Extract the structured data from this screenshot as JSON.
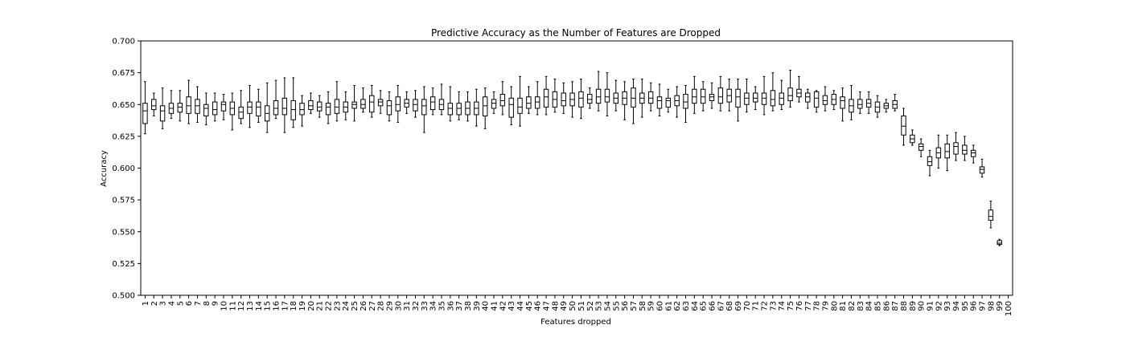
{
  "chart_data": {
    "type": "box",
    "title": "Predictive Accuracy as the Number of Features are Dropped",
    "xlabel": "Features dropped",
    "ylabel": "Accuracy",
    "ylim": [
      0.5,
      0.7
    ],
    "yticks": [
      "0.500",
      "0.525",
      "0.550",
      "0.575",
      "0.600",
      "0.625",
      "0.650",
      "0.675",
      "0.700"
    ],
    "grid": false,
    "categories": [
      "1",
      "2",
      "3",
      "4",
      "5",
      "6",
      "7",
      "8",
      "9",
      "10",
      "11",
      "12",
      "13",
      "14",
      "15",
      "16",
      "17",
      "18",
      "19",
      "20",
      "21",
      "22",
      "23",
      "24",
      "25",
      "26",
      "27",
      "28",
      "29",
      "30",
      "31",
      "32",
      "33",
      "34",
      "35",
      "36",
      "37",
      "38",
      "39",
      "40",
      "41",
      "42",
      "43",
      "44",
      "45",
      "46",
      "47",
      "48",
      "49",
      "50",
      "51",
      "52",
      "53",
      "54",
      "55",
      "56",
      "57",
      "58",
      "59",
      "60",
      "61",
      "62",
      "63",
      "64",
      "65",
      "66",
      "67",
      "68",
      "69",
      "70",
      "71",
      "72",
      "73",
      "74",
      "75",
      "76",
      "77",
      "78",
      "79",
      "80",
      "81",
      "82",
      "83",
      "84",
      "85",
      "86",
      "87",
      "88",
      "89",
      "90",
      "91",
      "92",
      "93",
      "94",
      "95",
      "96",
      "97",
      "98",
      "99",
      "100"
    ],
    "boxes": [
      {
        "x": "1",
        "whislo": 0.627,
        "q1": 0.635,
        "med": 0.645,
        "q3": 0.651,
        "whishi": 0.668
      },
      {
        "x": "2",
        "whislo": 0.641,
        "q1": 0.646,
        "med": 0.649,
        "q3": 0.654,
        "whishi": 0.659
      },
      {
        "x": "3",
        "whislo": 0.631,
        "q1": 0.637,
        "med": 0.645,
        "q3": 0.649,
        "whishi": 0.663
      },
      {
        "x": "4",
        "whislo": 0.639,
        "q1": 0.643,
        "med": 0.647,
        "q3": 0.651,
        "whishi": 0.661
      },
      {
        "x": "5",
        "whislo": 0.637,
        "q1": 0.644,
        "med": 0.648,
        "q3": 0.651,
        "whishi": 0.661
      },
      {
        "x": "6",
        "whislo": 0.635,
        "q1": 0.643,
        "med": 0.649,
        "q3": 0.656,
        "whishi": 0.669
      },
      {
        "x": "7",
        "whislo": 0.636,
        "q1": 0.643,
        "med": 0.649,
        "q3": 0.654,
        "whishi": 0.664
      },
      {
        "x": "8",
        "whislo": 0.634,
        "q1": 0.641,
        "med": 0.647,
        "q3": 0.65,
        "whishi": 0.659
      },
      {
        "x": "9",
        "whislo": 0.637,
        "q1": 0.642,
        "med": 0.646,
        "q3": 0.652,
        "whishi": 0.659
      },
      {
        "x": "10",
        "whislo": 0.638,
        "q1": 0.645,
        "med": 0.65,
        "q3": 0.652,
        "whishi": 0.658
      },
      {
        "x": "11",
        "whislo": 0.63,
        "q1": 0.642,
        "med": 0.647,
        "q3": 0.652,
        "whishi": 0.659
      },
      {
        "x": "12",
        "whislo": 0.635,
        "q1": 0.639,
        "med": 0.644,
        "q3": 0.648,
        "whishi": 0.661
      },
      {
        "x": "13",
        "whislo": 0.632,
        "q1": 0.643,
        "med": 0.648,
        "q3": 0.652,
        "whishi": 0.665
      },
      {
        "x": "14",
        "whislo": 0.636,
        "q1": 0.641,
        "med": 0.648,
        "q3": 0.652,
        "whishi": 0.662
      },
      {
        "x": "15",
        "whislo": 0.628,
        "q1": 0.637,
        "med": 0.643,
        "q3": 0.649,
        "whishi": 0.667
      },
      {
        "x": "16",
        "whislo": 0.639,
        "q1": 0.642,
        "med": 0.647,
        "q3": 0.653,
        "whishi": 0.669
      },
      {
        "x": "17",
        "whislo": 0.628,
        "q1": 0.642,
        "med": 0.647,
        "q3": 0.655,
        "whishi": 0.671
      },
      {
        "x": "18",
        "whislo": 0.632,
        "q1": 0.638,
        "med": 0.646,
        "q3": 0.653,
        "whishi": 0.671
      },
      {
        "x": "19",
        "whislo": 0.633,
        "q1": 0.642,
        "med": 0.646,
        "q3": 0.651,
        "whishi": 0.657
      },
      {
        "x": "20",
        "whislo": 0.643,
        "q1": 0.646,
        "med": 0.649,
        "q3": 0.653,
        "whishi": 0.659
      },
      {
        "x": "21",
        "whislo": 0.64,
        "q1": 0.645,
        "med": 0.648,
        "q3": 0.652,
        "whishi": 0.657
      },
      {
        "x": "22",
        "whislo": 0.635,
        "q1": 0.642,
        "med": 0.648,
        "q3": 0.651,
        "whishi": 0.66
      },
      {
        "x": "23",
        "whislo": 0.637,
        "q1": 0.643,
        "med": 0.648,
        "q3": 0.654,
        "whishi": 0.668
      },
      {
        "x": "24",
        "whislo": 0.638,
        "q1": 0.644,
        "med": 0.648,
        "q3": 0.652,
        "whishi": 0.66
      },
      {
        "x": "25",
        "whislo": 0.637,
        "q1": 0.647,
        "med": 0.65,
        "q3": 0.652,
        "whishi": 0.665
      },
      {
        "x": "26",
        "whislo": 0.644,
        "q1": 0.647,
        "med": 0.65,
        "q3": 0.654,
        "whishi": 0.663
      },
      {
        "x": "27",
        "whislo": 0.64,
        "q1": 0.644,
        "med": 0.652,
        "q3": 0.657,
        "whishi": 0.665
      },
      {
        "x": "28",
        "whislo": 0.643,
        "q1": 0.649,
        "med": 0.652,
        "q3": 0.654,
        "whishi": 0.661
      },
      {
        "x": "29",
        "whislo": 0.637,
        "q1": 0.642,
        "med": 0.649,
        "q3": 0.653,
        "whishi": 0.66
      },
      {
        "x": "30",
        "whislo": 0.636,
        "q1": 0.645,
        "med": 0.65,
        "q3": 0.656,
        "whishi": 0.665
      },
      {
        "x": "31",
        "whislo": 0.643,
        "q1": 0.648,
        "med": 0.651,
        "q3": 0.654,
        "whishi": 0.66
      },
      {
        "x": "32",
        "whislo": 0.64,
        "q1": 0.645,
        "med": 0.65,
        "q3": 0.654,
        "whishi": 0.661
      },
      {
        "x": "33",
        "whislo": 0.628,
        "q1": 0.642,
        "med": 0.649,
        "q3": 0.654,
        "whishi": 0.664
      },
      {
        "x": "34",
        "whislo": 0.642,
        "q1": 0.646,
        "med": 0.652,
        "q3": 0.656,
        "whishi": 0.663
      },
      {
        "x": "35",
        "whislo": 0.642,
        "q1": 0.646,
        "med": 0.65,
        "q3": 0.654,
        "whishi": 0.666
      },
      {
        "x": "36",
        "whislo": 0.637,
        "q1": 0.642,
        "med": 0.647,
        "q3": 0.651,
        "whishi": 0.664
      },
      {
        "x": "37",
        "whislo": 0.638,
        "q1": 0.642,
        "med": 0.647,
        "q3": 0.651,
        "whishi": 0.66
      },
      {
        "x": "38",
        "whislo": 0.637,
        "q1": 0.642,
        "med": 0.647,
        "q3": 0.652,
        "whishi": 0.66
      },
      {
        "x": "39",
        "whislo": 0.633,
        "q1": 0.642,
        "med": 0.647,
        "q3": 0.652,
        "whishi": 0.662
      },
      {
        "x": "40",
        "whislo": 0.631,
        "q1": 0.641,
        "med": 0.649,
        "q3": 0.656,
        "whishi": 0.663
      },
      {
        "x": "41",
        "whislo": 0.643,
        "q1": 0.647,
        "med": 0.651,
        "q3": 0.654,
        "whishi": 0.66
      },
      {
        "x": "42",
        "whislo": 0.642,
        "q1": 0.649,
        "med": 0.653,
        "q3": 0.658,
        "whishi": 0.668
      },
      {
        "x": "43",
        "whislo": 0.634,
        "q1": 0.64,
        "med": 0.65,
        "q3": 0.655,
        "whishi": 0.664
      },
      {
        "x": "44",
        "whislo": 0.633,
        "q1": 0.643,
        "med": 0.648,
        "q3": 0.655,
        "whishi": 0.672
      },
      {
        "x": "45",
        "whislo": 0.643,
        "q1": 0.647,
        "med": 0.651,
        "q3": 0.656,
        "whishi": 0.664
      },
      {
        "x": "46",
        "whislo": 0.642,
        "q1": 0.647,
        "med": 0.652,
        "q3": 0.656,
        "whishi": 0.668
      },
      {
        "x": "47",
        "whislo": 0.642,
        "q1": 0.648,
        "med": 0.656,
        "q3": 0.662,
        "whishi": 0.672
      },
      {
        "x": "48",
        "whislo": 0.644,
        "q1": 0.648,
        "med": 0.654,
        "q3": 0.66,
        "whishi": 0.67
      },
      {
        "x": "49",
        "whislo": 0.643,
        "q1": 0.649,
        "med": 0.653,
        "q3": 0.659,
        "whishi": 0.667
      },
      {
        "x": "50",
        "whislo": 0.64,
        "q1": 0.649,
        "med": 0.654,
        "q3": 0.659,
        "whishi": 0.668
      },
      {
        "x": "51",
        "whislo": 0.639,
        "q1": 0.648,
        "med": 0.655,
        "q3": 0.66,
        "whishi": 0.67
      },
      {
        "x": "52",
        "whislo": 0.647,
        "q1": 0.651,
        "med": 0.654,
        "q3": 0.658,
        "whishi": 0.663
      },
      {
        "x": "53",
        "whislo": 0.645,
        "q1": 0.651,
        "med": 0.656,
        "q3": 0.662,
        "whishi": 0.676
      },
      {
        "x": "54",
        "whislo": 0.641,
        "q1": 0.652,
        "med": 0.656,
        "q3": 0.662,
        "whishi": 0.675
      },
      {
        "x": "55",
        "whislo": 0.645,
        "q1": 0.651,
        "med": 0.655,
        "q3": 0.659,
        "whishi": 0.669
      },
      {
        "x": "56",
        "whislo": 0.638,
        "q1": 0.65,
        "med": 0.655,
        "q3": 0.66,
        "whishi": 0.668
      },
      {
        "x": "57",
        "whislo": 0.635,
        "q1": 0.648,
        "med": 0.655,
        "q3": 0.663,
        "whishi": 0.67
      },
      {
        "x": "58",
        "whislo": 0.64,
        "q1": 0.651,
        "med": 0.655,
        "q3": 0.659,
        "whishi": 0.67
      },
      {
        "x": "59",
        "whislo": 0.645,
        "q1": 0.651,
        "med": 0.655,
        "q3": 0.66,
        "whishi": 0.667
      },
      {
        "x": "60",
        "whislo": 0.641,
        "q1": 0.647,
        "med": 0.653,
        "q3": 0.656,
        "whishi": 0.666
      },
      {
        "x": "61",
        "whislo": 0.644,
        "q1": 0.648,
        "med": 0.653,
        "q3": 0.655,
        "whishi": 0.662
      },
      {
        "x": "62",
        "whislo": 0.64,
        "q1": 0.649,
        "med": 0.653,
        "q3": 0.657,
        "whishi": 0.664
      },
      {
        "x": "63",
        "whislo": 0.636,
        "q1": 0.647,
        "med": 0.652,
        "q3": 0.658,
        "whishi": 0.665
      },
      {
        "x": "64",
        "whislo": 0.643,
        "q1": 0.651,
        "med": 0.656,
        "q3": 0.662,
        "whishi": 0.672
      },
      {
        "x": "65",
        "whislo": 0.645,
        "q1": 0.651,
        "med": 0.656,
        "q3": 0.662,
        "whishi": 0.668
      },
      {
        "x": "66",
        "whislo": 0.647,
        "q1": 0.653,
        "med": 0.656,
        "q3": 0.658,
        "whishi": 0.667
      },
      {
        "x": "67",
        "whislo": 0.645,
        "q1": 0.651,
        "med": 0.656,
        "q3": 0.663,
        "whishi": 0.672
      },
      {
        "x": "68",
        "whislo": 0.645,
        "q1": 0.652,
        "med": 0.657,
        "q3": 0.662,
        "whishi": 0.67
      },
      {
        "x": "69",
        "whislo": 0.637,
        "q1": 0.648,
        "med": 0.656,
        "q3": 0.662,
        "whishi": 0.67
      },
      {
        "x": "70",
        "whislo": 0.644,
        "q1": 0.65,
        "med": 0.655,
        "q3": 0.659,
        "whishi": 0.67
      },
      {
        "x": "71",
        "whislo": 0.646,
        "q1": 0.652,
        "med": 0.655,
        "q3": 0.659,
        "whishi": 0.664
      },
      {
        "x": "72",
        "whislo": 0.642,
        "q1": 0.65,
        "med": 0.655,
        "q3": 0.659,
        "whishi": 0.672
      },
      {
        "x": "73",
        "whislo": 0.645,
        "q1": 0.649,
        "med": 0.654,
        "q3": 0.661,
        "whishi": 0.675
      },
      {
        "x": "74",
        "whislo": 0.646,
        "q1": 0.65,
        "med": 0.655,
        "q3": 0.659,
        "whishi": 0.669
      },
      {
        "x": "75",
        "whislo": 0.648,
        "q1": 0.653,
        "med": 0.657,
        "q3": 0.663,
        "whishi": 0.677
      },
      {
        "x": "76",
        "whislo": 0.652,
        "q1": 0.656,
        "med": 0.659,
        "q3": 0.662,
        "whishi": 0.672
      },
      {
        "x": "77",
        "whislo": 0.647,
        "q1": 0.652,
        "med": 0.656,
        "q3": 0.659,
        "whishi": 0.662
      },
      {
        "x": "78",
        "whislo": 0.644,
        "q1": 0.648,
        "med": 0.655,
        "q3": 0.66,
        "whishi": 0.661
      },
      {
        "x": "79",
        "whislo": 0.645,
        "q1": 0.65,
        "med": 0.653,
        "q3": 0.657,
        "whishi": 0.664
      },
      {
        "x": "80",
        "whislo": 0.646,
        "q1": 0.65,
        "med": 0.654,
        "q3": 0.658,
        "whishi": 0.661
      },
      {
        "x": "81",
        "whislo": 0.637,
        "q1": 0.647,
        "med": 0.653,
        "q3": 0.656,
        "whishi": 0.663
      },
      {
        "x": "82",
        "whislo": 0.638,
        "q1": 0.644,
        "med": 0.649,
        "q3": 0.654,
        "whishi": 0.665
      },
      {
        "x": "83",
        "whislo": 0.643,
        "q1": 0.647,
        "med": 0.65,
        "q3": 0.654,
        "whishi": 0.66
      },
      {
        "x": "84",
        "whislo": 0.643,
        "q1": 0.648,
        "med": 0.651,
        "q3": 0.654,
        "whishi": 0.66
      },
      {
        "x": "85",
        "whislo": 0.64,
        "q1": 0.644,
        "med": 0.648,
        "q3": 0.652,
        "whishi": 0.657
      },
      {
        "x": "86",
        "whislo": 0.644,
        "q1": 0.647,
        "med": 0.649,
        "q3": 0.651,
        "whishi": 0.654
      },
      {
        "x": "87",
        "whislo": 0.645,
        "q1": 0.647,
        "med": 0.65,
        "q3": 0.653,
        "whishi": 0.658
      },
      {
        "x": "88",
        "whislo": 0.618,
        "q1": 0.626,
        "med": 0.633,
        "q3": 0.641,
        "whishi": 0.647
      },
      {
        "x": "89",
        "whislo": 0.618,
        "q1": 0.62,
        "med": 0.623,
        "q3": 0.626,
        "whishi": 0.63
      },
      {
        "x": "90",
        "whislo": 0.609,
        "q1": 0.614,
        "med": 0.617,
        "q3": 0.619,
        "whishi": 0.623
      },
      {
        "x": "91",
        "whislo": 0.594,
        "q1": 0.602,
        "med": 0.605,
        "q3": 0.609,
        "whishi": 0.614
      },
      {
        "x": "92",
        "whislo": 0.6,
        "q1": 0.608,
        "med": 0.612,
        "q3": 0.616,
        "whishi": 0.626
      },
      {
        "x": "93",
        "whislo": 0.598,
        "q1": 0.608,
        "med": 0.613,
        "q3": 0.619,
        "whishi": 0.626
      },
      {
        "x": "94",
        "whislo": 0.606,
        "q1": 0.611,
        "med": 0.617,
        "q3": 0.62,
        "whishi": 0.628
      },
      {
        "x": "95",
        "whislo": 0.606,
        "q1": 0.611,
        "med": 0.614,
        "q3": 0.618,
        "whishi": 0.625
      },
      {
        "x": "96",
        "whislo": 0.604,
        "q1": 0.609,
        "med": 0.612,
        "q3": 0.614,
        "whishi": 0.618
      },
      {
        "x": "97",
        "whislo": 0.593,
        "q1": 0.596,
        "med": 0.599,
        "q3": 0.601,
        "whishi": 0.607
      },
      {
        "x": "98",
        "whislo": 0.553,
        "q1": 0.559,
        "med": 0.562,
        "q3": 0.567,
        "whishi": 0.574
      },
      {
        "x": "99",
        "whislo": 0.539,
        "q1": 0.54,
        "med": 0.541,
        "q3": 0.543,
        "whishi": 0.544
      }
    ]
  }
}
